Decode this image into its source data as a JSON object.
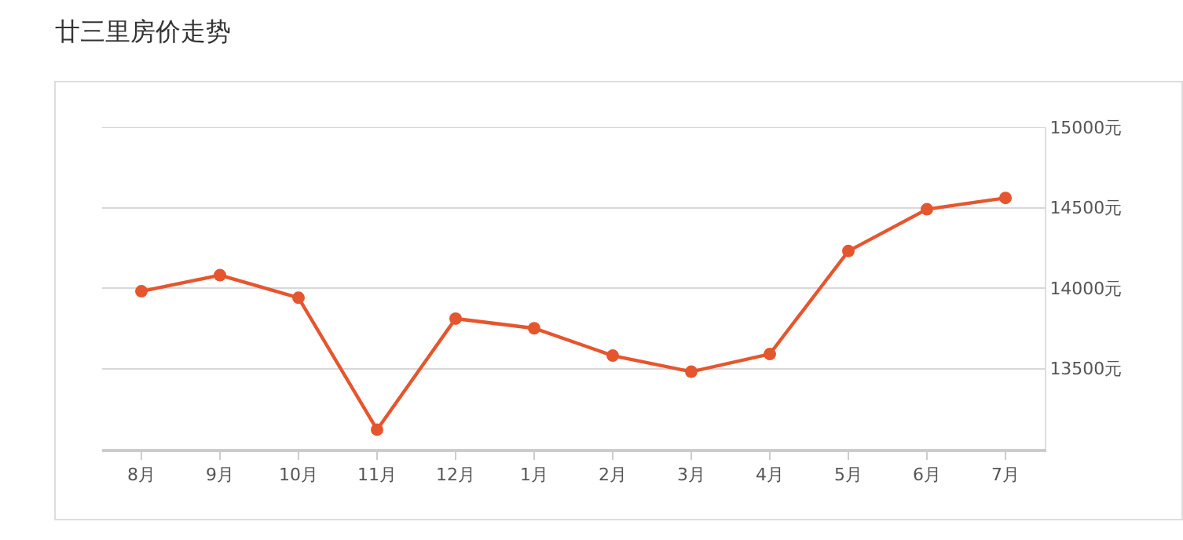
{
  "chart_data": {
    "type": "line",
    "title": "廿三里房价走势",
    "categories": [
      "8月",
      "9月",
      "10月",
      "11月",
      "12月",
      "1月",
      "2月",
      "3月",
      "4月",
      "5月",
      "6月",
      "7月"
    ],
    "series": [
      {
        "color": "#e5562f",
        "values": [
          13980,
          14080,
          13940,
          13120,
          13810,
          13750,
          13580,
          13480,
          13590,
          14230,
          14490,
          14560
        ]
      }
    ],
    "ylim": [
      13000,
      15000
    ],
    "yticks": [
      {
        "value": 13500,
        "label": "13500元"
      },
      {
        "value": 14000,
        "label": "14000元"
      },
      {
        "value": 14500,
        "label": "14500元"
      },
      {
        "value": 15000,
        "label": "15000元"
      }
    ],
    "grid": "y",
    "marker": "circle",
    "line_style": "solid"
  }
}
